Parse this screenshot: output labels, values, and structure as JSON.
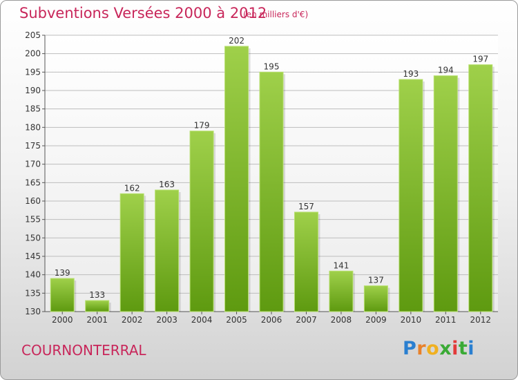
{
  "title": "Subventions Versées 2000 à 2012",
  "subtitle": "(en milliers d'€)",
  "commune": "COURNONTERRAL",
  "logo": {
    "letters": [
      "P",
      "r",
      "o",
      "x",
      "i",
      "t",
      "i"
    ],
    "colors": [
      "#2a7fd0",
      "#e8812a",
      "#f0b020",
      "#3aaa35",
      "#e23a3a",
      "#3aaa35",
      "#2a7fd0"
    ]
  },
  "colors": {
    "accent": "#c8265a",
    "bar_top": "#9fd04a",
    "bar_bottom": "#5e9a10",
    "grid": "#bdbdbd"
  },
  "chart_data": {
    "type": "bar",
    "categories": [
      "2000",
      "2001",
      "2002",
      "2003",
      "2004",
      "2005",
      "2006",
      "2007",
      "2008",
      "2009",
      "2010",
      "2011",
      "2012"
    ],
    "values": [
      139,
      133,
      162,
      163,
      179,
      202,
      195,
      157,
      141,
      137,
      193,
      194,
      197
    ],
    "ylim": [
      130,
      205
    ],
    "yticks": [
      130,
      135,
      140,
      145,
      150,
      155,
      160,
      165,
      170,
      175,
      180,
      185,
      190,
      195,
      200,
      205
    ],
    "grid": true,
    "data_labels": true
  }
}
